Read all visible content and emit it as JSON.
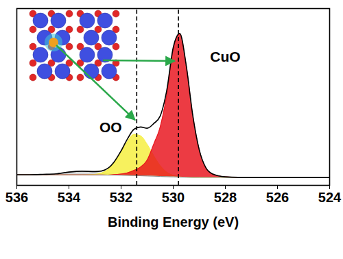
{
  "chart_data": {
    "type": "area",
    "xlabel": "Binding Energy (eV)",
    "xlim": [
      536,
      524
    ],
    "xticks": [
      536,
      534,
      532,
      530,
      528,
      526,
      524
    ],
    "ylim": [
      0,
      100
    ],
    "yticks": [],
    "tick_labels": "x",
    "x": [
      536,
      535.5,
      535,
      534.5,
      534,
      533.5,
      533,
      532.75,
      532.5,
      532.25,
      532,
      531.75,
      531.5,
      531.25,
      531,
      530.75,
      530.5,
      530.25,
      530,
      529.75,
      529.5,
      529.25,
      529,
      528.75,
      528.5,
      528,
      527.5,
      527,
      526,
      525,
      524
    ],
    "background": [
      6.0,
      6.0,
      6.0,
      6.0,
      6.0,
      6.0,
      5.9,
      5.9,
      5.8,
      5.8,
      5.7,
      5.6,
      5.5,
      5.4,
      5.3,
      5.2,
      5.0,
      4.9,
      4.8,
      4.7,
      4.6,
      4.5,
      4.5,
      4.5,
      4.5,
      4.5,
      4.5,
      4.5,
      4.5,
      4.5,
      4.5
    ],
    "series": [
      {
        "type": "area",
        "color": "#cfcfcf",
        "values": [
          6.0,
          6.0,
          6.2,
          6.5,
          7.5,
          8.0,
          7.5,
          7.0,
          6.6,
          6.2,
          5.9,
          5.7,
          5.5,
          5.4,
          5.3,
          5.2,
          5.0,
          4.9,
          4.8,
          4.7,
          4.6,
          4.5,
          4.5,
          4.5,
          4.5,
          4.5,
          4.5,
          4.5,
          4.5,
          4.5,
          4.5
        ]
      },
      {
        "name": "OO",
        "type": "area",
        "color": "#f5ee3a",
        "peak": 531.4,
        "values": [
          6.0,
          6.0,
          6.0,
          6.0,
          6.0,
          6.0,
          6.2,
          7.0,
          8.9,
          12.9,
          18.6,
          24.8,
          28.8,
          28.0,
          23.3,
          16.9,
          11.2,
          7.5,
          5.7,
          4.9,
          4.6,
          4.5,
          4.5,
          4.5,
          4.5,
          4.5,
          4.5,
          4.5,
          4.5,
          4.5,
          4.5
        ]
      },
      {
        "name": "CuO",
        "type": "area",
        "color": "#e8101a",
        "peak": 529.8,
        "values": [
          6.0,
          6.0,
          6.0,
          6.0,
          6.0,
          6.0,
          5.9,
          5.9,
          5.8,
          6.1,
          6.4,
          7.1,
          8.5,
          10.4,
          14.3,
          23.2,
          33.0,
          51.0,
          77.0,
          85.5,
          67.6,
          39.5,
          20.0,
          10.0,
          6.5,
          4.8,
          4.5,
          4.5,
          4.5,
          4.5,
          4.5
        ]
      },
      {
        "type": "line",
        "color": "#000000",
        "values": [
          6.0,
          6.0,
          6.2,
          6.5,
          7.5,
          8.0,
          7.8,
          8.1,
          9.7,
          13.6,
          19.5,
          26.4,
          31.8,
          33.0,
          32.3,
          34.9,
          39.2,
          53.5,
          77.9,
          85.9,
          67.7,
          39.6,
          20.0,
          10.0,
          6.5,
          4.8,
          4.5,
          4.5,
          4.5,
          4.5,
          4.5
        ]
      }
    ]
  }
}
